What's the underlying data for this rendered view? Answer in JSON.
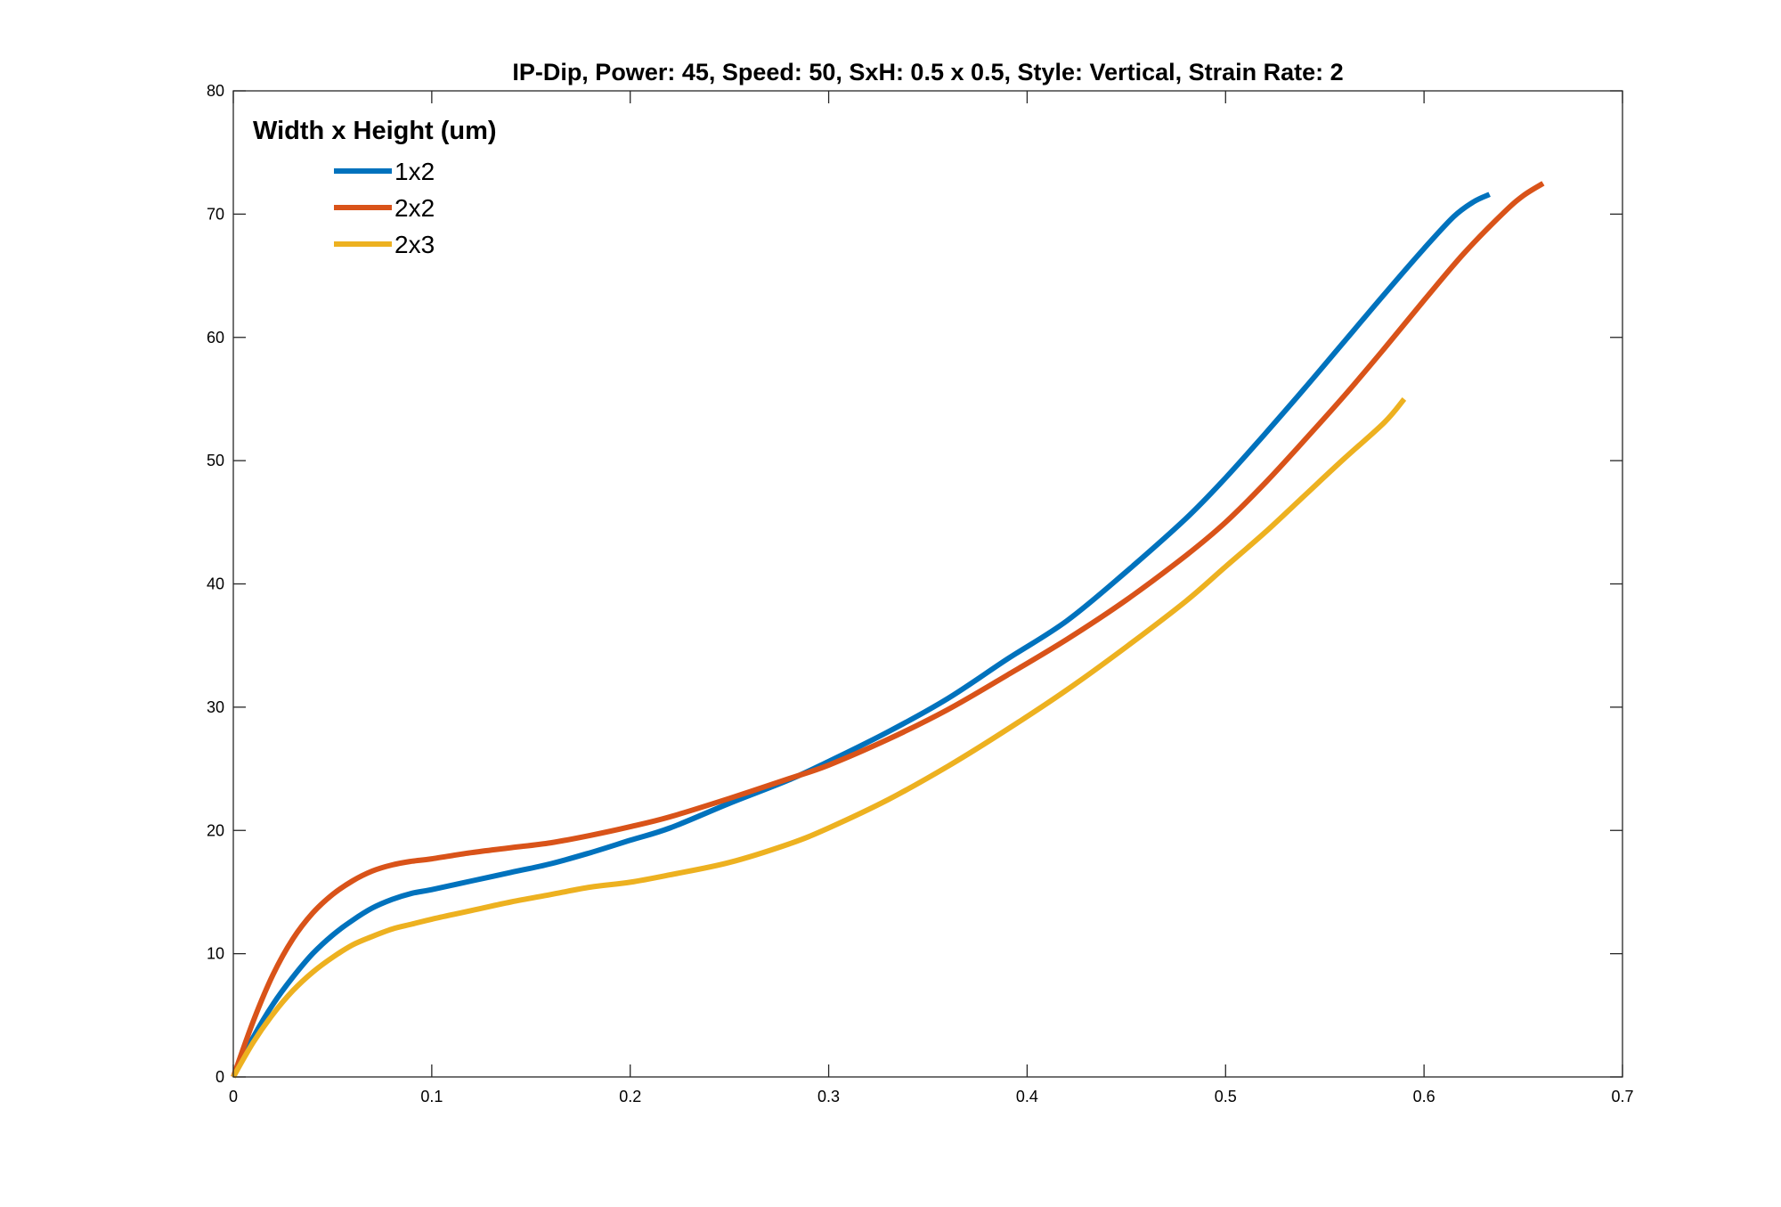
{
  "chart_data": {
    "type": "line",
    "title": "IP-Dip, Power: 45, Speed: 50, SxH: 0.5 x 0.5, Style: Vertical, Strain Rate: 2",
    "xlabel": "",
    "ylabel": "",
    "xlim": [
      0,
      0.7
    ],
    "ylim": [
      0,
      80
    ],
    "xticks": [
      0,
      0.1,
      0.2,
      0.3,
      0.4,
      0.5,
      0.6,
      0.7
    ],
    "yticks": [
      0,
      10,
      20,
      30,
      40,
      50,
      60,
      70,
      80
    ],
    "xtick_labels": [
      "0",
      "0.1",
      "0.2",
      "0.3",
      "0.4",
      "0.5",
      "0.6",
      "0.7"
    ],
    "ytick_labels": [
      "0",
      "10",
      "20",
      "30",
      "40",
      "50",
      "60",
      "70",
      "80"
    ],
    "grid": false,
    "legend": {
      "title": "Width x Height (um)",
      "placement": "top-left"
    },
    "series": [
      {
        "name": "1x2",
        "color": "#0072BD",
        "x": [
          0,
          0.01,
          0.02,
          0.03,
          0.04,
          0.05,
          0.06,
          0.07,
          0.08,
          0.09,
          0.1,
          0.12,
          0.14,
          0.16,
          0.18,
          0.2,
          0.22,
          0.25,
          0.28,
          0.3,
          0.33,
          0.36,
          0.39,
          0.42,
          0.45,
          0.48,
          0.5,
          0.52,
          0.54,
          0.56,
          0.58,
          0.6,
          0.615,
          0.625,
          0.633
        ],
        "y": [
          0,
          3.2,
          5.9,
          8.1,
          10.0,
          11.5,
          12.7,
          13.7,
          14.4,
          14.9,
          15.2,
          15.9,
          16.6,
          17.3,
          18.2,
          19.2,
          20.2,
          22.2,
          24.1,
          25.6,
          28.0,
          30.7,
          33.9,
          37.0,
          41.0,
          45.3,
          48.6,
          52.2,
          55.9,
          59.7,
          63.5,
          67.2,
          69.8,
          71.0,
          71.6
        ]
      },
      {
        "name": "2x2",
        "color": "#D95319",
        "x": [
          0,
          0.01,
          0.02,
          0.03,
          0.04,
          0.05,
          0.06,
          0.07,
          0.08,
          0.09,
          0.1,
          0.12,
          0.14,
          0.16,
          0.18,
          0.2,
          0.22,
          0.25,
          0.28,
          0.3,
          0.33,
          0.36,
          0.39,
          0.42,
          0.45,
          0.48,
          0.5,
          0.52,
          0.54,
          0.56,
          0.58,
          0.6,
          0.62,
          0.64,
          0.65,
          0.66
        ],
        "y": [
          0,
          4.5,
          8.3,
          11.2,
          13.3,
          14.8,
          15.9,
          16.7,
          17.2,
          17.5,
          17.7,
          18.2,
          18.6,
          19.0,
          19.6,
          20.3,
          21.1,
          22.6,
          24.2,
          25.3,
          27.4,
          29.8,
          32.6,
          35.5,
          38.7,
          42.3,
          45.0,
          48.2,
          51.7,
          55.3,
          59.1,
          63.0,
          66.8,
          70.1,
          71.5,
          72.5
        ]
      },
      {
        "name": "2x3",
        "color": "#EDB120",
        "x": [
          0,
          0.01,
          0.02,
          0.03,
          0.04,
          0.05,
          0.06,
          0.07,
          0.08,
          0.09,
          0.1,
          0.12,
          0.14,
          0.16,
          0.18,
          0.2,
          0.22,
          0.25,
          0.28,
          0.3,
          0.33,
          0.36,
          0.39,
          0.42,
          0.45,
          0.48,
          0.5,
          0.52,
          0.54,
          0.56,
          0.58,
          0.59
        ],
        "y": [
          0,
          2.8,
          5.1,
          7.0,
          8.5,
          9.7,
          10.7,
          11.4,
          12.0,
          12.4,
          12.8,
          13.5,
          14.2,
          14.8,
          15.4,
          15.8,
          16.4,
          17.4,
          18.9,
          20.2,
          22.5,
          25.2,
          28.2,
          31.4,
          34.9,
          38.6,
          41.4,
          44.2,
          47.2,
          50.2,
          53.1,
          55.0
        ]
      }
    ]
  }
}
